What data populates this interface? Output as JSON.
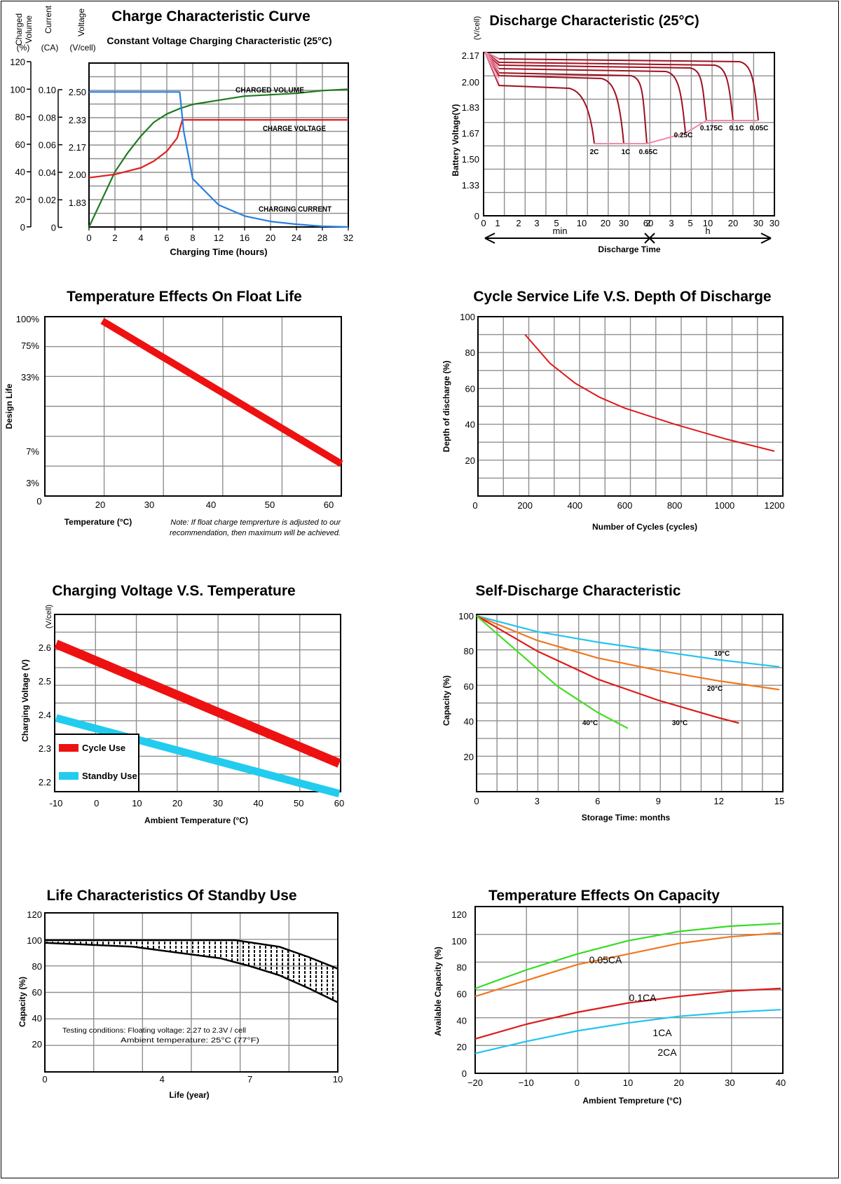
{
  "charge": {
    "title": "Charge Characteristic Curve",
    "subtitle": "Constant Voltage Charging Characteristic (25°C)",
    "axis_headers": {
      "volume": [
        "Charged",
        "Volume",
        "(%)"
      ],
      "current": [
        "Current",
        "(CA)"
      ],
      "voltage": [
        "Voltage",
        "(V/cell)"
      ]
    },
    "volume_ticks": [
      "120",
      "100",
      "80",
      "60",
      "40",
      "20",
      "0"
    ],
    "current_ticks": [
      "0.10",
      "0.08",
      "0.06",
      "0.04",
      "0.02",
      "0"
    ],
    "voltage_ticks": [
      "2.50",
      "2.33",
      "2.17",
      "2.00",
      "1.83"
    ],
    "x_ticks": [
      "0",
      "2",
      "4",
      "6",
      "8",
      "12",
      "16",
      "20",
      "24",
      "28",
      "32"
    ],
    "xlabel": "Charging Time (hours)",
    "labels": {
      "volume": "CHARGED VOLUME",
      "voltage": "CHARGE VOLTAGE",
      "current": "CHARGING CURRENT"
    },
    "colors": {
      "volume": "#1e7a1e",
      "voltage": "#e02020",
      "current": "#2a7fe0"
    }
  },
  "discharge": {
    "title": "Discharge Characteristic (25°C)",
    "yunit": "(V/cell)",
    "ylabel": "Battery Voltage(V)",
    "y_ticks": [
      "2.17",
      "2.00",
      "1.83",
      "1.67",
      "1.50",
      "1.33",
      "0"
    ],
    "x_ticks_min": [
      "0",
      "1",
      "2",
      "3",
      "5",
      "10",
      "20",
      "30",
      "60"
    ],
    "x_ticks_h": [
      "2",
      "3",
      "5",
      "10",
      "20",
      "30"
    ],
    "min_label": "min",
    "h_label": "h",
    "xlabel": "Discharge Time",
    "rate_labels": [
      "2C",
      "1C",
      "0.65C",
      "0.25C",
      "0.175C",
      "0.1C",
      "0.05C"
    ],
    "colors": {
      "curve": "#a01020",
      "cutoff": "#f08aa8"
    }
  },
  "float_life": {
    "title": "Temperature Effects On Float Life",
    "ylabel": "Design Life",
    "y_ticks": [
      "100%",
      "75%",
      "33%",
      "7%",
      "3%",
      "0"
    ],
    "x_ticks": [
      "20",
      "30",
      "40",
      "50",
      "60"
    ],
    "xlabel": "Temperature (°C)",
    "note": [
      "Note: If float charge temprerture is adjusted to our",
      "recommendation, then maximum will be achieved."
    ]
  },
  "cycle_life": {
    "title": "Cycle Service Life  V.S. Depth Of Discharge",
    "ylabel": "Depth of discharge (%)",
    "y_ticks": [
      "100",
      "80",
      "60",
      "40",
      "20"
    ],
    "x_ticks": [
      "0",
      "200",
      "400",
      "600",
      "800",
      "1000",
      "1200"
    ],
    "xlabel": "Number of Cycles (cycles)"
  },
  "charging_voltage": {
    "title": "Charging Voltage V.S. Temperature",
    "yunit": "(V/cell)",
    "ylabel": "Charging Voltage (V)",
    "y_ticks": [
      "2.6",
      "2.5",
      "2.4",
      "2.3",
      "2.2"
    ],
    "x_ticks": [
      "-10",
      "0",
      "10",
      "20",
      "30",
      "40",
      "50",
      "60"
    ],
    "xlabel": "Ambient Temperature (°C)",
    "legend": [
      "Cycle Use",
      "Standby Use"
    ],
    "colors": {
      "cycle": "#ee1111",
      "standby": "#22ccee"
    }
  },
  "self_discharge": {
    "title": "Self-Discharge Characteristic",
    "ylabel": "Capacity (%)",
    "y_ticks": [
      "100",
      "80",
      "60",
      "40",
      "20"
    ],
    "x_ticks": [
      "0",
      "3",
      "6",
      "9",
      "12",
      "15"
    ],
    "xlabel": "Storage Time: months",
    "series_labels": [
      "10°C",
      "20°C",
      "30°C",
      "40°C"
    ],
    "colors": {
      "10": "#22c4f0",
      "20": "#f07820",
      "30": "#e01818",
      "40": "#44dd22"
    }
  },
  "standby_life": {
    "title": "Life Characteristics Of Standby Use",
    "ylabel": "Capacity (%)",
    "y_ticks": [
      "120",
      "100",
      "80",
      "60",
      "40",
      "20"
    ],
    "x_ticks": [
      "0",
      "4",
      "7",
      "10"
    ],
    "xlabel": "Life (year)",
    "conditions": [
      "Testing conditions: Floating voltage: 2.27 to 2.3V / cell",
      "Ambient temperature:      25°C (77°F)"
    ]
  },
  "temp_capacity": {
    "title": "Temperature Effects On Capacity",
    "ylabel": "Available Capacity (%)",
    "y_ticks": [
      "120",
      "100",
      "80",
      "60",
      "40",
      "20",
      "0"
    ],
    "x_ticks": [
      "−20",
      "−10",
      "0",
      "10",
      "20",
      "30",
      "40"
    ],
    "xlabel": "Ambient Tempreture   (°C)",
    "series_labels": [
      "0.05CA",
      "0.1CA",
      "1CA",
      "2CA"
    ],
    "colors": {
      "0.05CA": "#33dd22",
      "0.1CA": "#f07820",
      "1CA": "#e01818",
      "2CA": "#22c4f0"
    }
  },
  "chart_data": [
    {
      "type": "line",
      "title": "Charge Characteristic Curve",
      "subtitle": "Constant Voltage Charging Characteristic (25°C)",
      "xlabel": "Charging Time (hours)",
      "x_ticks": [
        0,
        2,
        4,
        6,
        8,
        12,
        16,
        20,
        24,
        28,
        32
      ],
      "series": [
        {
          "name": "CHARGED VOLUME",
          "unit": "%",
          "points": [
            [
              0,
              0
            ],
            [
              1,
              20
            ],
            [
              2,
              40
            ],
            [
              3,
              54
            ],
            [
              4,
              66
            ],
            [
              5,
              76
            ],
            [
              6,
              82
            ],
            [
              7,
              86
            ],
            [
              8,
              89
            ],
            [
              12,
              92
            ],
            [
              16,
              95
            ],
            [
              20,
              96
            ],
            [
              24,
              97
            ],
            [
              28,
              99
            ],
            [
              32,
              100
            ]
          ]
        },
        {
          "name": "CHARGE VOLTAGE",
          "unit": "V/cell",
          "points": [
            [
              0,
              1.98
            ],
            [
              1,
              1.99
            ],
            [
              2,
              2.0
            ],
            [
              3,
              2.02
            ],
            [
              4,
              2.04
            ],
            [
              5,
              2.08
            ],
            [
              6,
              2.14
            ],
            [
              6.8,
              2.22
            ],
            [
              7.2,
              2.33
            ],
            [
              32,
              2.33
            ]
          ]
        },
        {
          "name": "CHARGING CURRENT",
          "unit": "CA",
          "points": [
            [
              0,
              0.098
            ],
            [
              7,
              0.098
            ],
            [
              7.3,
              0.07
            ],
            [
              7.8,
              0.045
            ],
            [
              8,
              0.035
            ],
            [
              12,
              0.016
            ],
            [
              16,
              0.008
            ],
            [
              20,
              0.004
            ],
            [
              24,
              0.002
            ],
            [
              28,
              0.0005
            ],
            [
              32,
              0
            ]
          ]
        }
      ]
    },
    {
      "type": "line",
      "title": "Discharge Characteristic (25°C)",
      "xlabel": "Discharge Time",
      "ylabel": "Battery Voltage(V)",
      "y_ticks": [
        2.17,
        2.0,
        1.83,
        1.67,
        1.5,
        1.33
      ],
      "series": [
        {
          "name": "2C",
          "end_voltage": 1.6
        },
        {
          "name": "1C",
          "end_voltage": 1.6
        },
        {
          "name": "0.65C",
          "end_voltage": 1.6
        },
        {
          "name": "0.25C",
          "end_voltage": 1.7
        },
        {
          "name": "0.175C",
          "end_voltage": 1.75
        },
        {
          "name": "0.1C",
          "end_voltage": 1.75
        },
        {
          "name": "0.05C",
          "end_voltage": 1.75
        }
      ]
    },
    {
      "type": "line",
      "title": "Temperature Effects On Float Life",
      "xlabel": "Temperature (°C)",
      "ylabel": "Design Life",
      "series": [
        {
          "points": [
            [
              20,
              "100%"
            ],
            [
              62,
              "6%"
            ]
          ]
        }
      ]
    },
    {
      "type": "line",
      "title": "Cycle Service Life  V.S. Depth Of Discharge",
      "xlabel": "Number of Cycles (cycles)",
      "ylabel": "Depth of discharge (%)",
      "series": [
        {
          "points": [
            [
              200,
              90
            ],
            [
              300,
              74
            ],
            [
              400,
              63
            ],
            [
              500,
              55
            ],
            [
              600,
              49
            ],
            [
              800,
              40
            ],
            [
              1000,
              32
            ],
            [
              1200,
              25
            ]
          ]
        }
      ]
    },
    {
      "type": "line",
      "title": "Charging Voltage V.S. Temperature",
      "xlabel": "Ambient Temperature (°C)",
      "ylabel": "Charging Voltage (V)",
      "series": [
        {
          "name": "Cycle Use",
          "points": [
            [
              -10,
              2.61
            ],
            [
              60,
              2.255
            ]
          ]
        },
        {
          "name": "Standby Use",
          "points": [
            [
              -10,
              2.39
            ],
            [
              60,
              2.165
            ]
          ]
        }
      ]
    },
    {
      "type": "line",
      "title": "Self-Discharge Characteristic",
      "xlabel": "Storage Time: months",
      "ylabel": "Capacity (%)",
      "series": [
        {
          "name": "10°C",
          "points": [
            [
              0,
              100
            ],
            [
              3,
              91
            ],
            [
              6,
              85
            ],
            [
              9,
              80
            ],
            [
              12,
              75
            ],
            [
              15,
              71
            ]
          ]
        },
        {
          "name": "20°C",
          "points": [
            [
              0,
              100
            ],
            [
              3,
              86
            ],
            [
              6,
              76
            ],
            [
              9,
              69
            ],
            [
              12,
              63
            ],
            [
              15,
              58
            ]
          ]
        },
        {
          "name": "30°C",
          "points": [
            [
              0,
              100
            ],
            [
              3,
              80
            ],
            [
              6,
              64
            ],
            [
              9,
              52
            ],
            [
              12,
              42
            ],
            [
              13,
              39
            ]
          ]
        },
        {
          "name": "40°C",
          "points": [
            [
              0,
              100
            ],
            [
              2,
              80
            ],
            [
              4,
              60
            ],
            [
              6,
              45
            ],
            [
              7.5,
              36
            ]
          ]
        }
      ]
    },
    {
      "type": "area",
      "title": "Life Characteristics Of Standby Use",
      "xlabel": "Life (year)",
      "ylabel": "Capacity (%)",
      "series": [
        {
          "name": "upper",
          "points": [
            [
              0,
              100
            ],
            [
              6.5,
              100
            ],
            [
              8,
              95
            ],
            [
              9,
              87
            ],
            [
              10,
              78
            ]
          ]
        },
        {
          "name": "lower",
          "points": [
            [
              0,
              98
            ],
            [
              3,
              95
            ],
            [
              6,
              86
            ],
            [
              7,
              80
            ],
            [
              8,
              73
            ],
            [
              9,
              63
            ],
            [
              10,
              52
            ]
          ]
        }
      ]
    },
    {
      "type": "line",
      "title": "Temperature Effects On Capacity",
      "xlabel": "Ambient Tempreture   (°C)",
      "ylabel": "Available Capacity (%)",
      "series": [
        {
          "name": "0.05CA",
          "points": [
            [
              -20,
              64
            ],
            [
              -10,
              78
            ],
            [
              0,
              90
            ],
            [
              10,
              100
            ],
            [
              20,
              107
            ],
            [
              30,
              111
            ],
            [
              40,
              113
            ]
          ]
        },
        {
          "name": "0.1CA",
          "points": [
            [
              -20,
              58
            ],
            [
              -10,
              70
            ],
            [
              0,
              82
            ],
            [
              10,
              90
            ],
            [
              20,
              98
            ],
            [
              30,
              103
            ],
            [
              40,
              106
            ]
          ]
        },
        {
          "name": "1CA",
          "points": [
            [
              -20,
              26
            ],
            [
              -10,
              37
            ],
            [
              0,
              46
            ],
            [
              10,
              53
            ],
            [
              20,
              58
            ],
            [
              30,
              62
            ],
            [
              40,
              64
            ]
          ]
        },
        {
          "name": "2CA",
          "points": [
            [
              -20,
              15
            ],
            [
              -10,
              24
            ],
            [
              0,
              32
            ],
            [
              10,
              38
            ],
            [
              20,
              43
            ],
            [
              30,
              46
            ],
            [
              40,
              48
            ]
          ]
        }
      ]
    }
  ]
}
